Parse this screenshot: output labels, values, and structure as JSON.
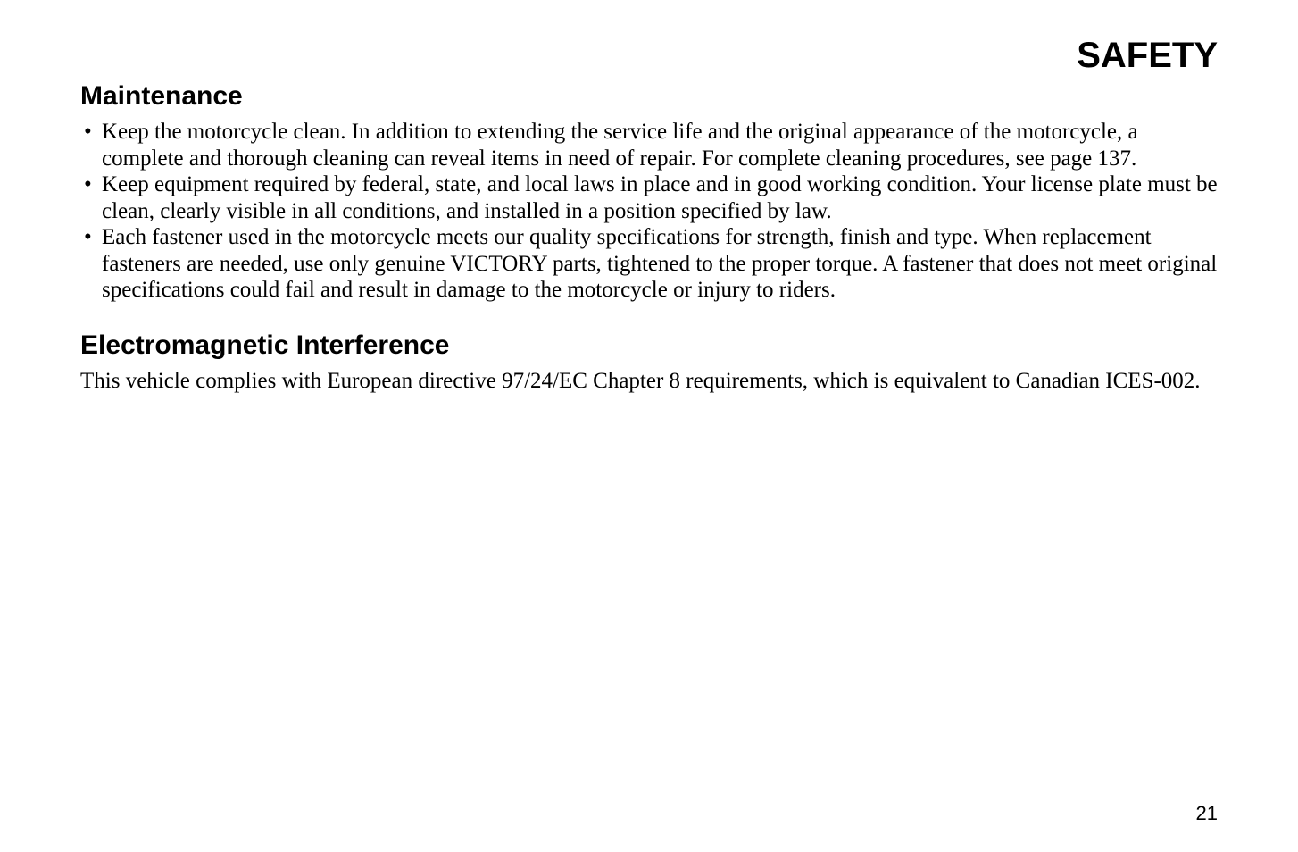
{
  "page": {
    "header_title": "SAFETY",
    "page_number": "21"
  },
  "sections": {
    "maintenance": {
      "heading": "Maintenance",
      "bullets": [
        "Keep the motorcycle clean. In addition to extending the service life and the original appearance of the motorcycle, a complete and thorough cleaning can reveal items in need of repair. For complete cleaning procedures, see page 137.",
        "Keep equipment required by federal, state, and local laws in place and in good working condition. Your license plate must be clean, clearly visible in all conditions, and installed in a position specified by law.",
        "Each fastener used in the motorcycle meets our quality specifications for strength, finish and type. When replacement fasteners are needed, use only genuine VICTORY parts, tightened to the proper torque. A fastener that does not meet original specifications could fail and result in damage to the motorcycle or injury to riders."
      ]
    },
    "emi": {
      "heading": "Electromagnetic Interference",
      "body": "This vehicle complies with European directive 97/24/EC Chapter 8 requirements, which is equivalent to Canadian ICES-002."
    }
  }
}
